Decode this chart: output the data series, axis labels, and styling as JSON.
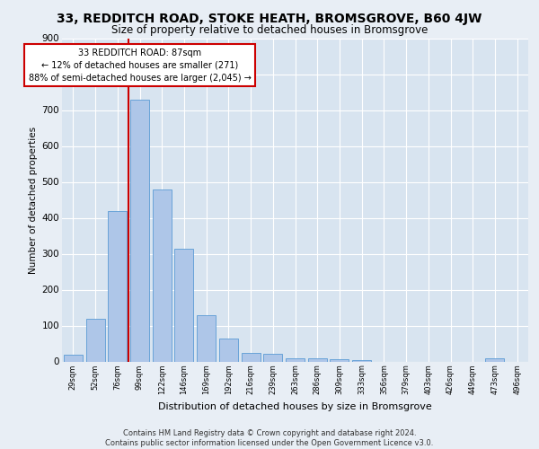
{
  "title_line1": "33, REDDITCH ROAD, STOKE HEATH, BROMSGROVE, B60 4JW",
  "title_line2": "Size of property relative to detached houses in Bromsgrove",
  "xlabel": "Distribution of detached houses by size in Bromsgrove",
  "ylabel": "Number of detached properties",
  "bar_color": "#aec6e8",
  "bar_edge_color": "#5b9bd5",
  "background_color": "#e8eef5",
  "plot_bg_color": "#d8e4f0",
  "grid_color": "#ffffff",
  "annotation_line_color": "#cc0000",
  "annotation_box_color": "#cc0000",
  "categories": [
    "29sqm",
    "52sqm",
    "76sqm",
    "99sqm",
    "122sqm",
    "146sqm",
    "169sqm",
    "192sqm",
    "216sqm",
    "239sqm",
    "263sqm",
    "286sqm",
    "309sqm",
    "333sqm",
    "356sqm",
    "379sqm",
    "403sqm",
    "426sqm",
    "449sqm",
    "473sqm",
    "496sqm"
  ],
  "values": [
    20,
    120,
    420,
    730,
    480,
    315,
    130,
    65,
    25,
    22,
    10,
    10,
    7,
    5,
    0,
    0,
    0,
    0,
    0,
    10,
    0
  ],
  "property_size": 87,
  "property_bin_index": 2,
  "annotation_text": "33 REDDITCH ROAD: 87sqm\n← 12% of detached houses are smaller (271)\n88% of semi-detached houses are larger (2,045) →",
  "footer_text": "Contains HM Land Registry data © Crown copyright and database right 2024.\nContains public sector information licensed under the Open Government Licence v3.0.",
  "ylim": [
    0,
    900
  ],
  "yticks": [
    0,
    100,
    200,
    300,
    400,
    500,
    600,
    700,
    800,
    900
  ]
}
